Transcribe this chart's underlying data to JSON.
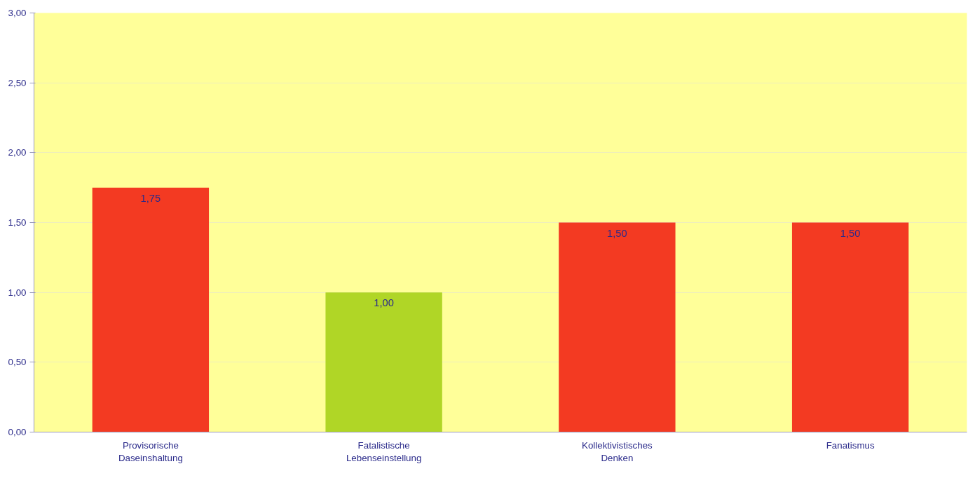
{
  "chart_data": {
    "type": "bar",
    "categories": [
      "Provisorische Daseinshaltung",
      "Fatalistische Lebenseinstellung",
      "Kollektivistisches Denken",
      "Fanatismus"
    ],
    "values": [
      1.75,
      1.0,
      1.5,
      1.5
    ],
    "colors": [
      "#f33a22",
      "#b0d626",
      "#f33a22",
      "#f33a22"
    ],
    "ylim": [
      0,
      3
    ],
    "yticks": [
      {
        "value": 0,
        "label": "0,00"
      },
      {
        "value": 0.5,
        "label": "0,50"
      },
      {
        "value": 1,
        "label": "1,00"
      },
      {
        "value": 1.5,
        "label": "1,50"
      },
      {
        "value": 2,
        "label": "2,00"
      },
      {
        "value": 2.5,
        "label": "2,50"
      },
      {
        "value": 3,
        "label": "3,00"
      }
    ],
    "grid": "y",
    "value_labels": [
      "1,75",
      "1,00",
      "1,50",
      "1,50"
    ]
  }
}
